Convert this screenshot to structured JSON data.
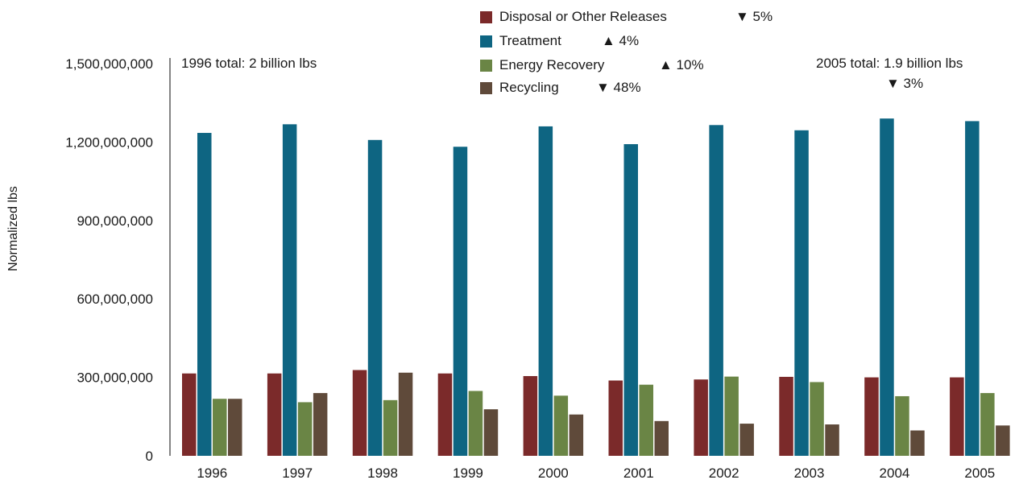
{
  "colors": {
    "disposal": "#7b2a2a",
    "treatment": "#0e6582",
    "energy": "#6a8545",
    "recycling": "#5f4a3a",
    "axis": "#333333"
  },
  "legend": [
    {
      "label": "Disposal or Other Releases",
      "change": "▼ 5%"
    },
    {
      "label": "Treatment",
      "change": "▲ 4%"
    },
    {
      "label": "Energy Recovery",
      "change": "▲ 10%"
    },
    {
      "label": "Recycling",
      "change": "▼ 48%"
    }
  ],
  "notes": {
    "left_total": "1996 total: 2 billion lbs",
    "right_total": "2005 total: 1.9 billion lbs",
    "right_change": "▼ 3%"
  },
  "chart_data": {
    "type": "bar",
    "title": "",
    "xlabel": "",
    "ylabel": "Normalized lbs",
    "ylim": [
      0,
      1500000000
    ],
    "yticks": [
      0,
      300000000,
      600000000,
      900000000,
      1200000000,
      1500000000
    ],
    "ytick_labels": [
      "0",
      "300,000,000",
      "600,000,000",
      "900,000,000",
      "1,200,000,000",
      "1,500,000,000"
    ],
    "categories": [
      "1996",
      "1997",
      "1998",
      "1999",
      "2000",
      "2001",
      "2002",
      "2003",
      "2004",
      "2005"
    ],
    "grid": false,
    "legend_position": "top-center",
    "series": [
      {
        "name": "Disposal or Other Releases",
        "values": [
          315000000,
          315000000,
          328000000,
          315000000,
          305000000,
          288000000,
          292000000,
          302000000,
          300000000,
          300000000
        ]
      },
      {
        "name": "Treatment",
        "values": [
          1235000000,
          1268000000,
          1208000000,
          1182000000,
          1260000000,
          1192000000,
          1265000000,
          1245000000,
          1290000000,
          1280000000
        ]
      },
      {
        "name": "Energy Recovery",
        "values": [
          218000000,
          205000000,
          213000000,
          248000000,
          230000000,
          272000000,
          303000000,
          282000000,
          228000000,
          240000000
        ]
      },
      {
        "name": "Recycling",
        "values": [
          218000000,
          240000000,
          318000000,
          178000000,
          158000000,
          133000000,
          123000000,
          120000000,
          97000000,
          116000000
        ]
      }
    ]
  }
}
